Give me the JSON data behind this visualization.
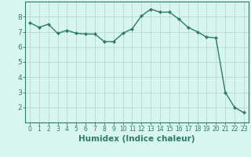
{
  "title": "",
  "xlabel": "Humidex (Indice chaleur)",
  "ylabel": "",
  "x_values": [
    0,
    1,
    2,
    3,
    4,
    5,
    6,
    7,
    8,
    9,
    10,
    11,
    12,
    13,
    14,
    15,
    16,
    17,
    18,
    19,
    20,
    21,
    22,
    23
  ],
  "y_values": [
    7.6,
    7.3,
    7.5,
    6.9,
    7.1,
    6.9,
    6.85,
    6.85,
    6.35,
    6.35,
    6.9,
    7.2,
    8.05,
    8.5,
    8.3,
    8.3,
    7.85,
    7.3,
    7.0,
    6.65,
    6.6,
    3.0,
    2.0,
    1.65
  ],
  "line_color": "#2d7b6b",
  "marker": "D",
  "marker_size": 2.0,
  "background_color": "#d8f5f0",
  "grid_color": "#b8d8d4",
  "axis_color": "#2d7b6b",
  "tick_color": "#2d7b6b",
  "ylim": [
    1.0,
    9.0
  ],
  "xlim": [
    -0.5,
    23.5
  ],
  "yticks": [
    2,
    3,
    4,
    5,
    6,
    7,
    8
  ],
  "xticks": [
    0,
    1,
    2,
    3,
    4,
    5,
    6,
    7,
    8,
    9,
    10,
    11,
    12,
    13,
    14,
    15,
    16,
    17,
    18,
    19,
    20,
    21,
    22,
    23
  ],
  "xtick_fontsize": 5.5,
  "ytick_fontsize": 6.5,
  "xlabel_fontsize": 7.5,
  "linewidth": 1.0
}
